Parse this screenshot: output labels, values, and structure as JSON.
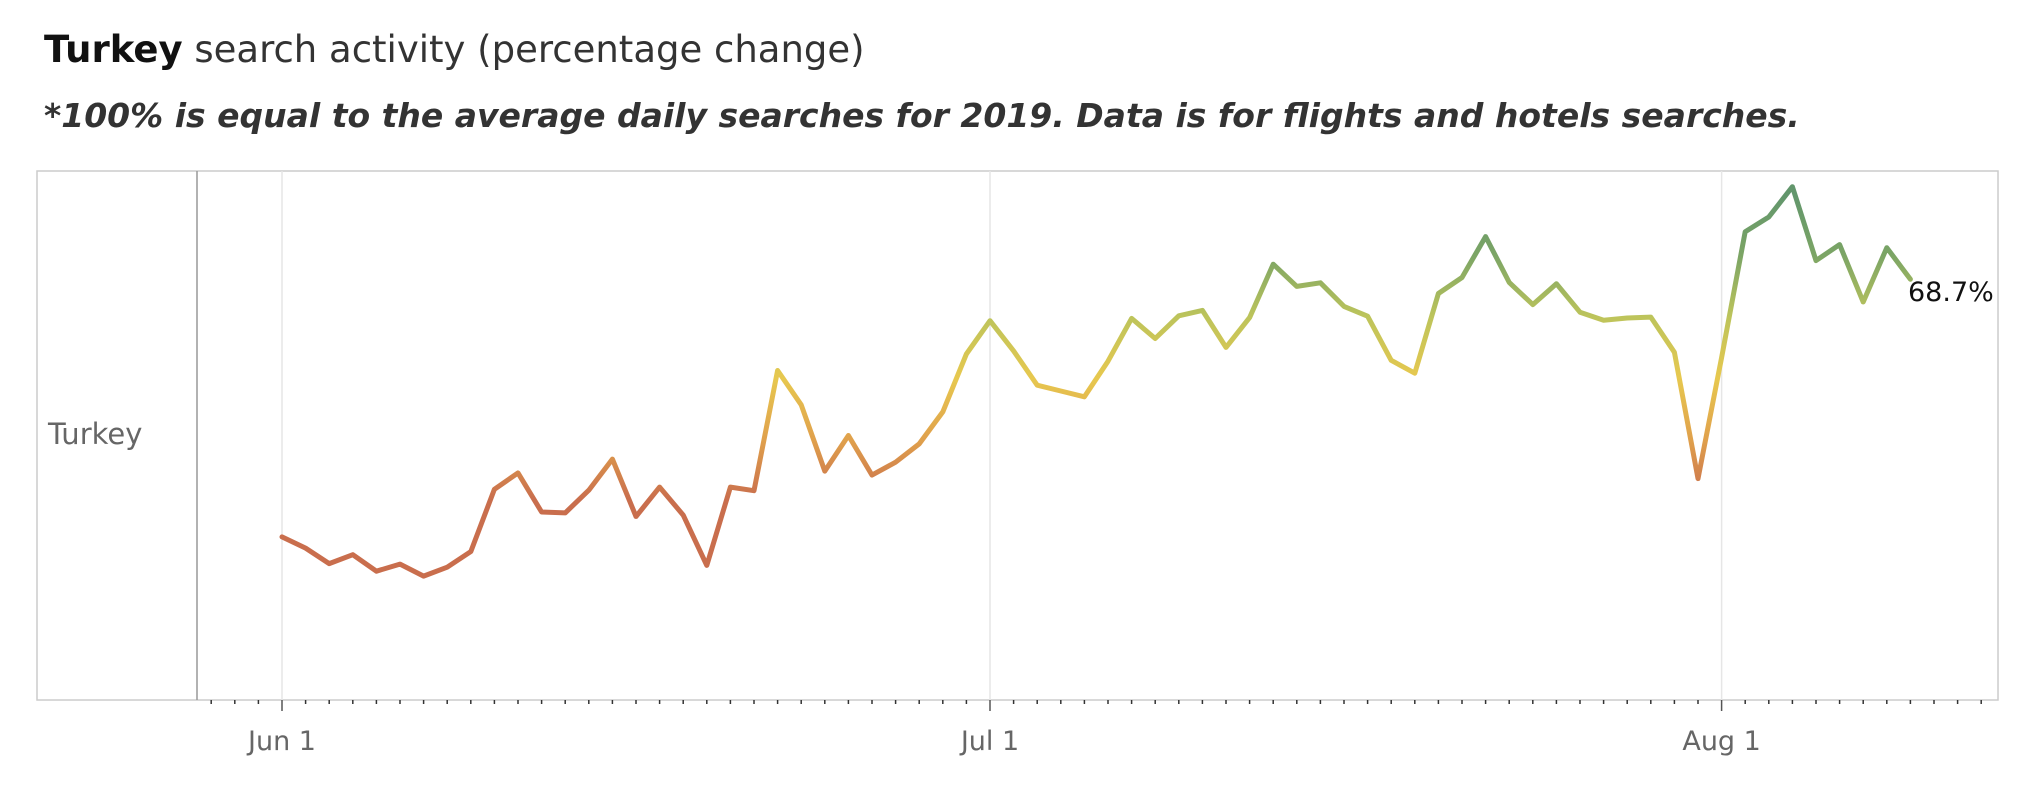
{
  "header": {
    "title_bold": "Turkey",
    "title_rest": " search activity (percentage change)",
    "subtitle": "*100% is equal to the average daily searches for 2019. Data is for flights and hotels searches."
  },
  "colors": {
    "frame": "#cccccc",
    "grid": "#e6e6e6",
    "tick_label": "#666666",
    "row_label": "#666666",
    "gradient": [
      "#c96e4d",
      "#e0a14c",
      "#e7c84f",
      "#bdc45b",
      "#7ca565",
      "#62966c"
    ]
  },
  "chart_data": {
    "type": "line",
    "title": "Turkey search activity (percentage change)",
    "subtitle": "*100% is equal to the average daily searches for 2019. Data is for flights and hotels searches.",
    "row_label": "Turkey",
    "x_tick_labels": [
      "Jun 1",
      "Jul 1",
      "Aug 1"
    ],
    "x_start": "2020-06-01",
    "last_value_label": "68.7%",
    "grid": true,
    "series": [
      {
        "values": [
          10.8,
          8.3,
          4.8,
          6.8,
          3.1,
          4.7,
          2.0,
          4.0,
          7.5,
          21.5,
          25.2,
          16.4,
          16.2,
          21.3,
          28.3,
          15.4,
          22.0,
          15.7,
          4.4,
          22.0,
          21.2,
          48.2,
          40.5,
          25.6,
          33.6,
          24.7,
          27.6,
          31.7,
          38.9,
          51.9,
          59.4,
          52.6,
          44.9,
          43.6,
          42.3,
          50.3,
          59.9,
          55.4,
          60.5,
          61.7,
          53.4,
          60.1,
          72.1,
          67.1,
          67.9,
          62.6,
          60.4,
          50.5,
          47.6,
          65.5,
          69.1,
          78.3,
          68.0,
          63.0,
          67.7,
          61.3,
          59.5,
          60.0,
          60.2,
          52.3,
          23.9,
          51.1,
          79.4,
          82.7,
          89.5,
          72.9,
          76.5,
          63.6,
          75.8,
          68.7
        ]
      }
    ]
  }
}
